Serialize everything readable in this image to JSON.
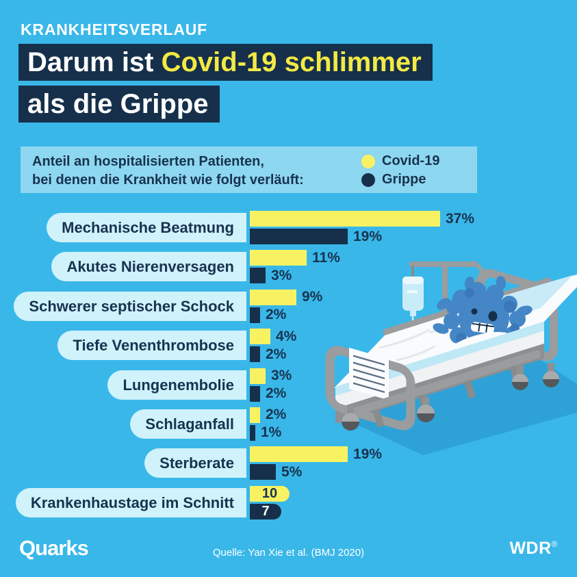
{
  "eyebrow": "KRANKHEITSVERLAUF",
  "title": {
    "line1_white": "Darum ist ",
    "line1_yellow": "Covid-19 schlimmer",
    "line2_white": "als die Grippe"
  },
  "legend_panel": {
    "caption_line1": "Anteil an hospitalisierten Patienten,",
    "caption_line2": "bei denen die Krankheit wie folgt verläuft:",
    "entries": [
      {
        "label": "Covid-19",
        "color": "#F8F263"
      },
      {
        "label": "Grippe",
        "color": "#16304B"
      }
    ]
  },
  "chart_data": {
    "type": "bar",
    "orientation": "horizontal",
    "series": [
      "Covid-19",
      "Grippe"
    ],
    "categories": [
      "Mechanische Beatmung",
      "Akutes Nierenversagen",
      "Schwerer septischer Schock",
      "Tiefe Venenthrombose",
      "Lungenembolie",
      "Schlaganfall",
      "Sterberate",
      "Krankenhaustage im Schnitt"
    ],
    "rows": [
      {
        "label": "Mechanische Beatmung",
        "covid": 37,
        "grippe": 19,
        "unit": "%",
        "labels_inside": false
      },
      {
        "label": "Akutes Nierenversagen",
        "covid": 11,
        "grippe": 3,
        "unit": "%",
        "labels_inside": false
      },
      {
        "label": "Schwerer septischer Schock",
        "covid": 9,
        "grippe": 2,
        "unit": "%",
        "labels_inside": false
      },
      {
        "label": "Tiefe Venenthrombose",
        "covid": 4,
        "grippe": 2,
        "unit": "%",
        "labels_inside": false
      },
      {
        "label": "Lungenembolie",
        "covid": 3,
        "grippe": 2,
        "unit": "%",
        "labels_inside": false
      },
      {
        "label": "Schlaganfall",
        "covid": 2,
        "grippe": 1,
        "unit": "%",
        "labels_inside": false
      },
      {
        "label": "Sterberate",
        "covid": 19,
        "grippe": 5,
        "unit": "%",
        "labels_inside": false
      },
      {
        "label": "Krankenhaustage im Schnitt",
        "covid": 10,
        "grippe": 7,
        "unit": "",
        "labels_inside": true
      }
    ],
    "colors": {
      "covid": "#F8F263",
      "grippe": "#16304B"
    },
    "legend_position": "top-right",
    "grid": false
  },
  "illustration": {
    "name": "virus-in-hospital-bed"
  },
  "footer": {
    "brand_left": "Quarks",
    "source": "Quelle: Yan Xie et al. (BMJ 2020)",
    "brand_right": "WDR",
    "registered_mark": "®"
  }
}
